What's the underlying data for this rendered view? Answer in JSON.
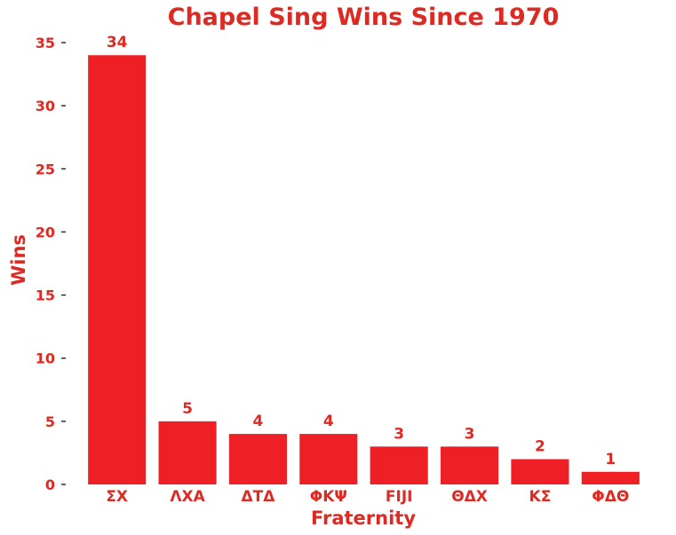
{
  "chart_data": {
    "type": "bar",
    "title": "Chapel Sing Wins Since 1970",
    "xlabel": "Fraternity",
    "ylabel": "Wins",
    "categories": [
      "ΣΧ",
      "ΛΧΑ",
      "ΔΤΔ",
      "ΦΚΨ",
      "FIJI",
      "ΘΔΧ",
      "ΚΣ",
      "ΦΔΘ"
    ],
    "values": [
      34,
      5,
      4,
      4,
      3,
      3,
      2,
      1
    ],
    "ylim": [
      0,
      35
    ],
    "yticks": [
      0,
      5,
      10,
      15,
      20,
      25,
      30,
      35
    ],
    "grid": false,
    "legend": "none",
    "colors": {
      "bar": "#ee1f25",
      "text": "#dd2a23"
    }
  }
}
